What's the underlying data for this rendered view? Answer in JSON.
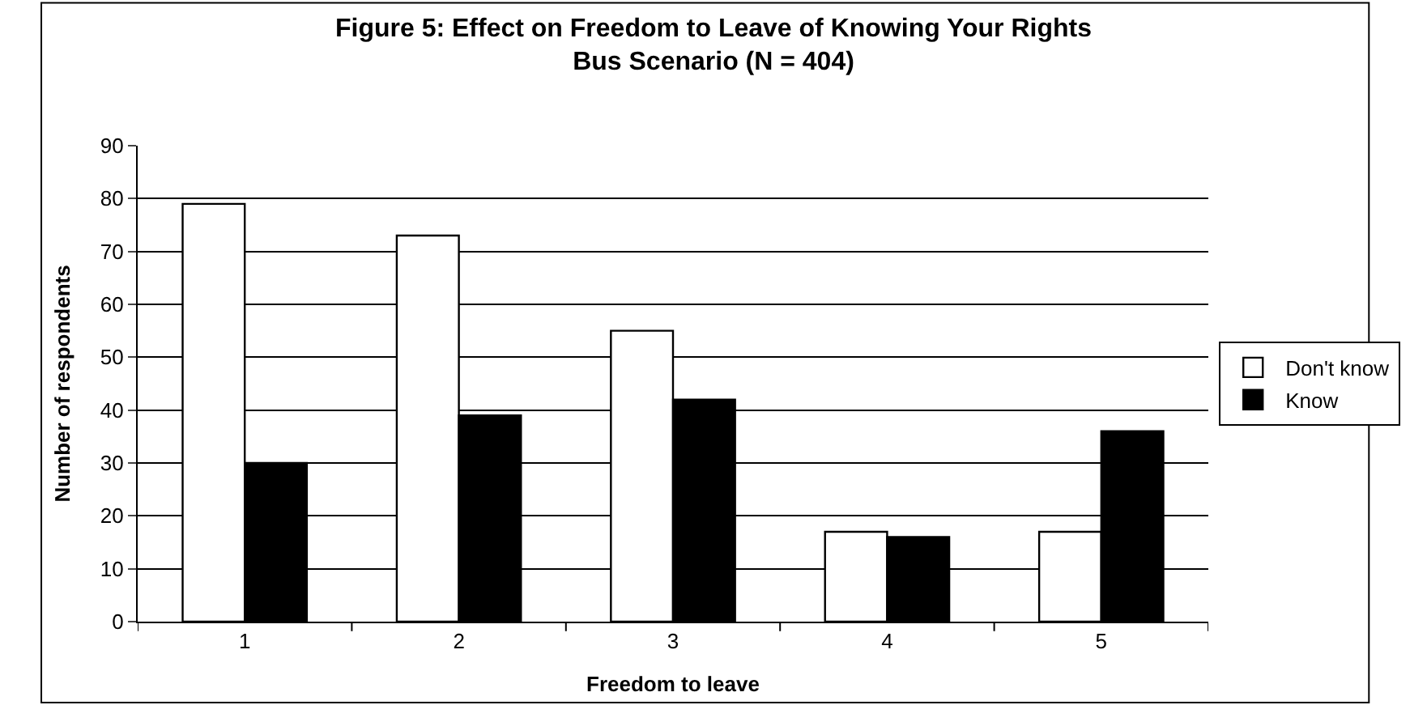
{
  "chart_data": {
    "type": "bar",
    "title": "Figure 5: Effect on Freedom to Leave of Knowing Your Rights\nBus Scenario (N = 404)",
    "xlabel": "Freedom to leave",
    "ylabel": "Number of respondents",
    "categories": [
      "1",
      "2",
      "3",
      "4",
      "5"
    ],
    "series": [
      {
        "name": "Don't know",
        "color": "#ffffff",
        "values": [
          79,
          73,
          55,
          17,
          17
        ]
      },
      {
        "name": "Know",
        "color": "#000000",
        "values": [
          30,
          39,
          42,
          16,
          36
        ]
      }
    ],
    "ylim": [
      0,
      90
    ],
    "yticks": [
      0,
      10,
      20,
      30,
      40,
      50,
      60,
      70,
      80,
      90
    ],
    "grid": "y",
    "legend": "right"
  }
}
